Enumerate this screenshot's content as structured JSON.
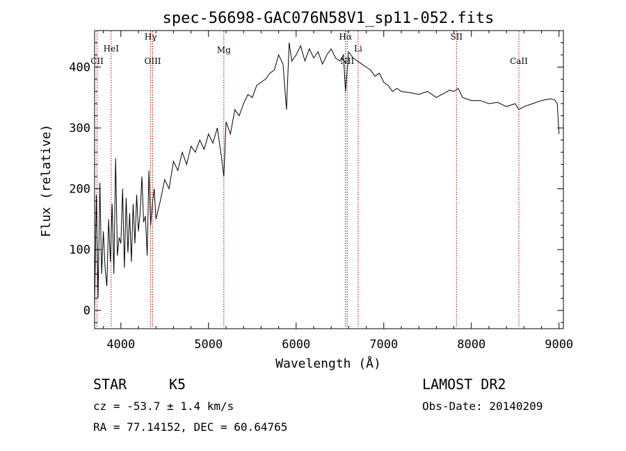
{
  "chart_data": {
    "type": "line",
    "title": "spec-56698-GAC076N58V1_sp11-052.fits",
    "xlabel": "Wavelength (Å)",
    "ylabel": "Flux (relative)",
    "xlim": [
      3700,
      9050
    ],
    "ylim": [
      -30,
      460
    ],
    "xticks": [
      4000,
      5000,
      6000,
      7000,
      8000,
      9000
    ],
    "yticks": [
      0,
      100,
      200,
      300,
      400
    ],
    "grid": false,
    "line_color": "#000000",
    "marker_color": "#990000",
    "series": [
      {
        "x": [
          3700,
          3720,
          3740,
          3760,
          3780,
          3800,
          3820,
          3840,
          3860,
          3880,
          3900,
          3920,
          3940,
          3960,
          3980,
          4000,
          4020,
          4040,
          4060,
          4080,
          4100,
          4120,
          4140,
          4160,
          4180,
          4200,
          4220,
          4240,
          4260,
          4280,
          4300,
          4320,
          4340,
          4360,
          4380,
          4400,
          4450,
          4500,
          4550,
          4600,
          4650,
          4700,
          4750,
          4800,
          4850,
          4900,
          4950,
          5000,
          5050,
          5100,
          5150,
          5175,
          5200,
          5250,
          5300,
          5350,
          5400,
          5450,
          5500,
          5550,
          5600,
          5650,
          5700,
          5750,
          5800,
          5850,
          5890,
          5920,
          5950,
          6000,
          6050,
          6100,
          6150,
          6200,
          6250,
          6300,
          6350,
          6400,
          6450,
          6500,
          6540,
          6563,
          6600,
          6650,
          6700,
          6750,
          6800,
          6850,
          6900,
          6950,
          7000,
          7050,
          7100,
          7150,
          7200,
          7300,
          7400,
          7500,
          7600,
          7700,
          7750,
          7800,
          7850,
          7900,
          8000,
          8100,
          8200,
          8300,
          8400,
          8500,
          8542,
          8600,
          8700,
          8800,
          8900,
          8950,
          8980,
          9000
        ],
        "values": [
          5,
          190,
          20,
          210,
          60,
          130,
          70,
          40,
          150,
          80,
          175,
          60,
          250,
          90,
          120,
          110,
          200,
          70,
          185,
          95,
          160,
          80,
          175,
          110,
          190,
          130,
          160,
          220,
          145,
          155,
          90,
          230,
          140,
          175,
          200,
          150,
          180,
          215,
          200,
          245,
          230,
          260,
          240,
          270,
          260,
          280,
          265,
          290,
          275,
          300,
          250,
          220,
          310,
          290,
          330,
          320,
          340,
          355,
          350,
          370,
          375,
          380,
          390,
          395,
          420,
          405,
          330,
          440,
          410,
          420,
          435,
          410,
          430,
          415,
          425,
          405,
          420,
          430,
          415,
          410,
          420,
          360,
          425,
          415,
          410,
          405,
          400,
          395,
          385,
          390,
          375,
          370,
          360,
          365,
          360,
          358,
          355,
          360,
          350,
          358,
          362,
          360,
          365,
          350,
          345,
          345,
          340,
          342,
          335,
          340,
          330,
          335,
          340,
          345,
          348,
          346,
          340,
          290
        ]
      }
    ],
    "line_marks": [
      {
        "label": "CII",
        "x": 3728
      },
      {
        "label": "HeI",
        "x": 3889
      },
      {
        "label": "Hγ",
        "x": 4340
      },
      {
        "label": "OIII",
        "x": 4363
      },
      {
        "label": "Mg",
        "x": 5175
      },
      {
        "label": "Hα",
        "x": 6563
      },
      {
        "label": "NII",
        "x": 6583
      },
      {
        "label": "Li",
        "x": 6708
      },
      {
        "label": "SII",
        "x": 7830
      },
      {
        "label": "CaII",
        "x": 8542
      }
    ]
  },
  "info": {
    "object": "STAR",
    "subclass": "K5",
    "survey": "LAMOST DR2",
    "redshift": "cz = -53.7 ± 1.4 km/s",
    "obs_date": "Obs-Date: 20140209",
    "coords": "RA =  77.14152, DEC =  60.64765"
  }
}
